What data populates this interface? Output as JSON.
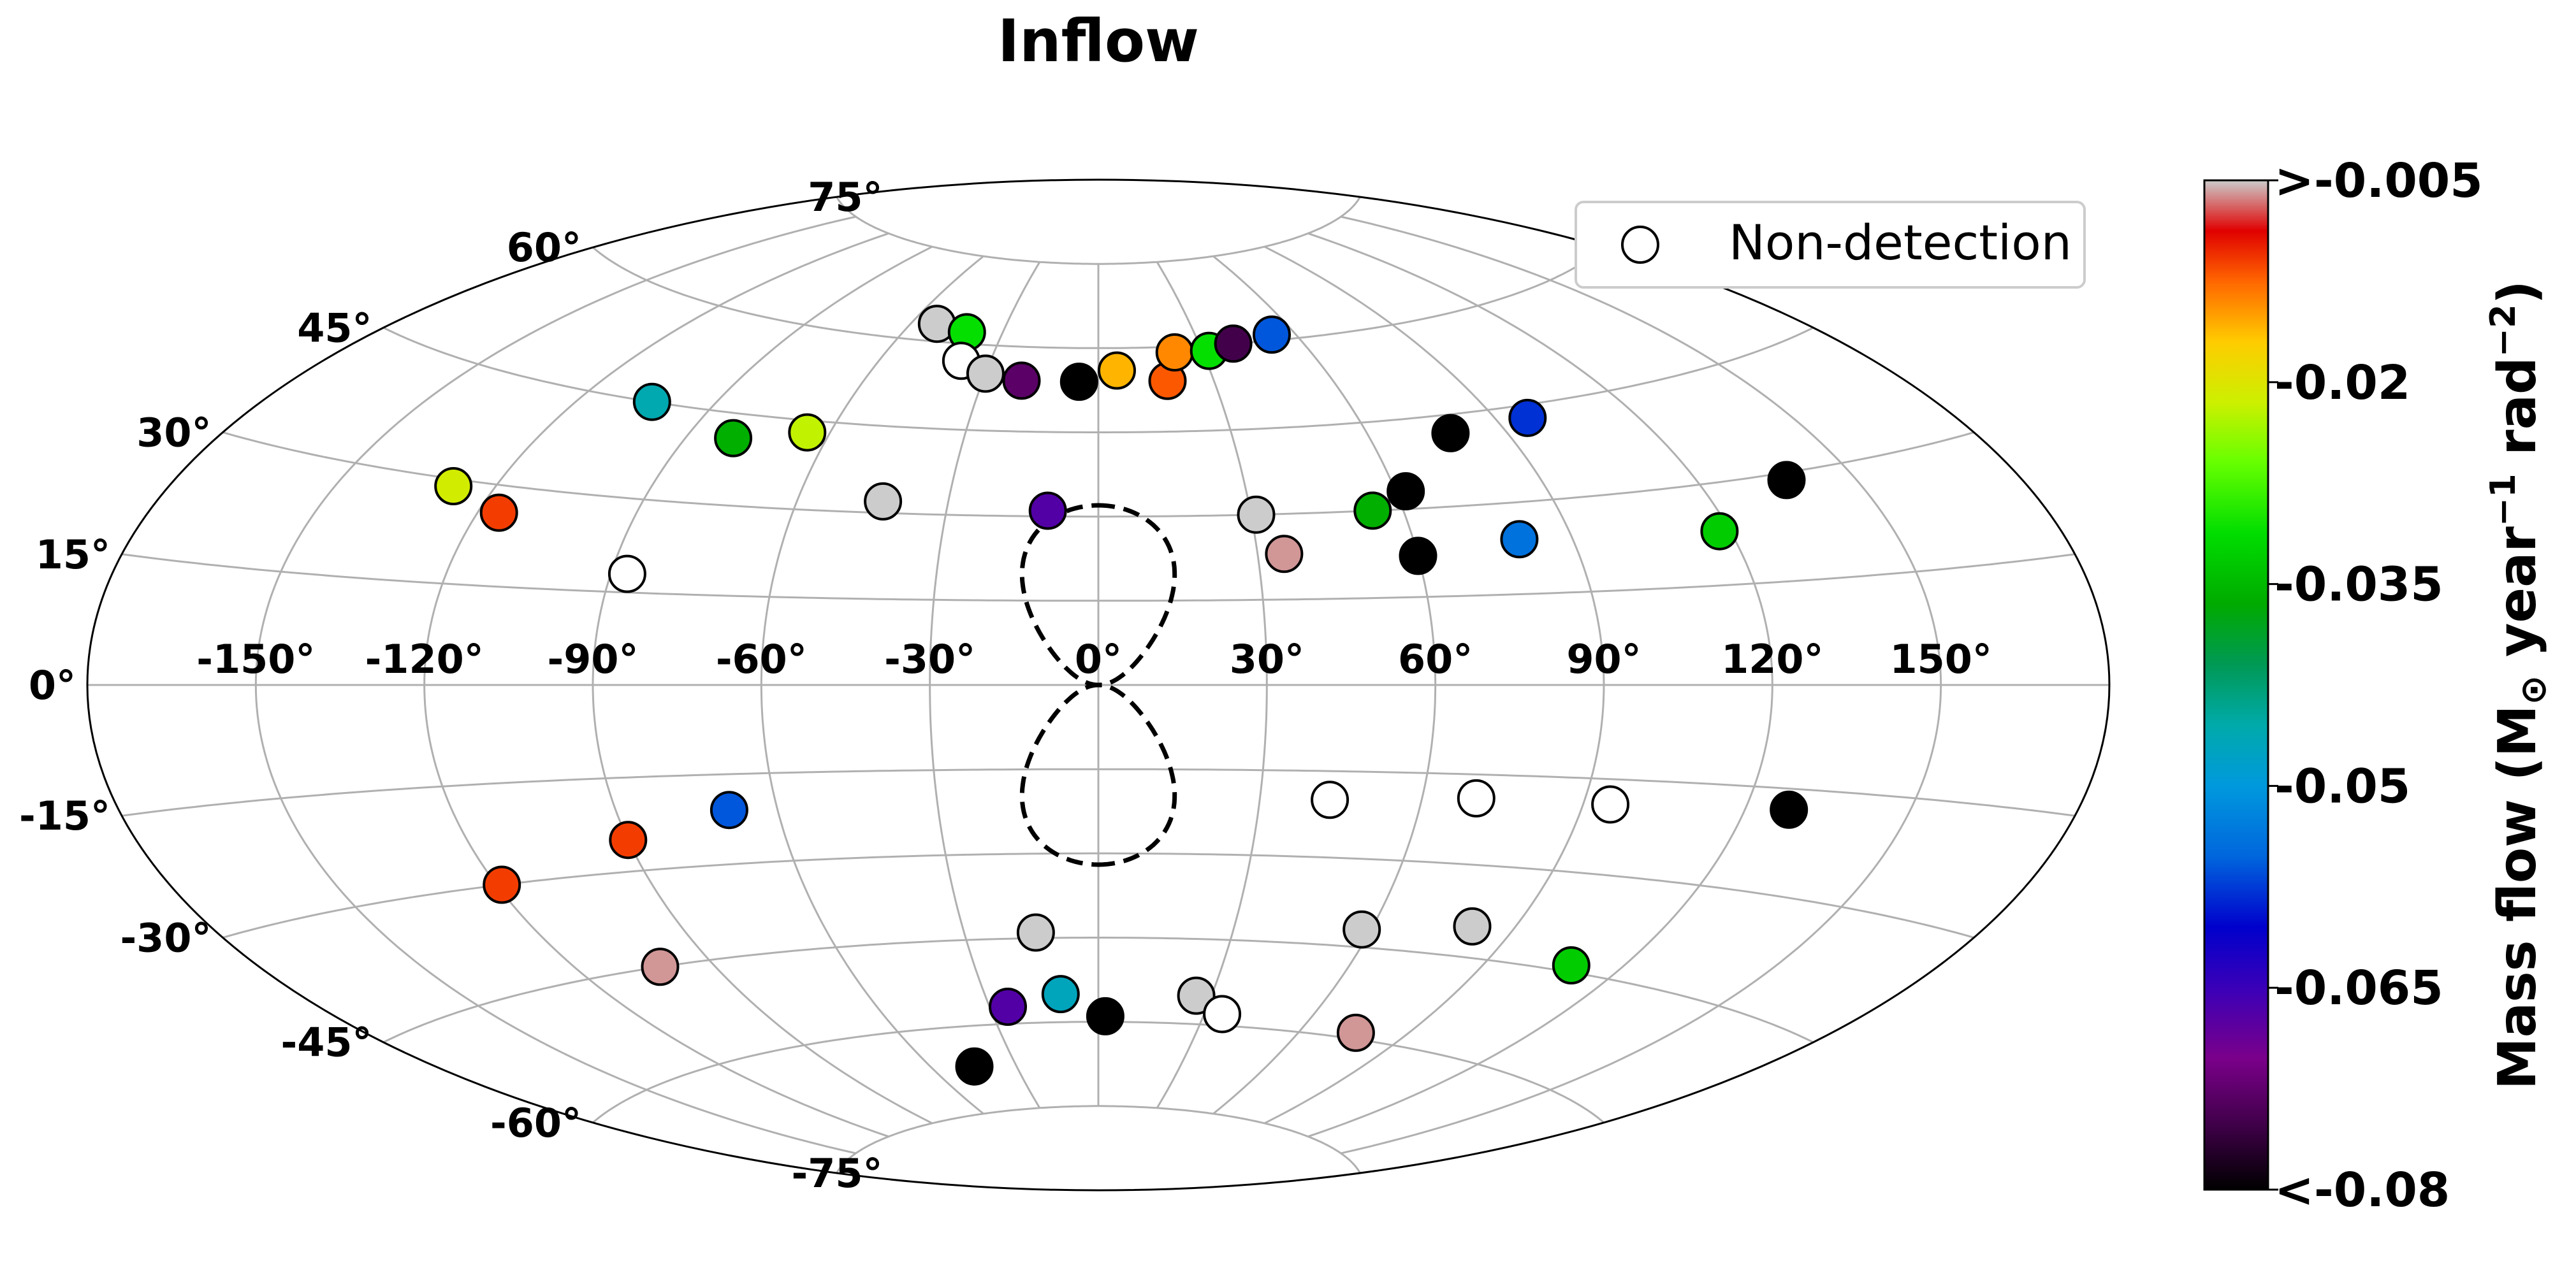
{
  "chart_data": {
    "type": "scatter",
    "projection": "aitoff",
    "title": "Inflow",
    "longitude_ticks": [
      "-150°",
      "-120°",
      "-90°",
      "-60°",
      "-30°",
      "0°",
      "30°",
      "60°",
      "90°",
      "120°",
      "150°"
    ],
    "latitude_ticks": [
      "75°",
      "60°",
      "45°",
      "30°",
      "15°",
      "0°",
      "-15°",
      "-30°",
      "-45°",
      "-60°",
      "-75°"
    ],
    "grid": true,
    "legend": {
      "entries": [
        "Non-detection"
      ],
      "position": "top-right"
    },
    "colorbar": {
      "label_parts": [
        "Mass flow (M",
        "⊙",
        " year",
        "−1",
        " rad",
        "−2",
        ")"
      ],
      "ticks": [
        ">-0.005",
        "-0.02",
        "-0.035",
        "-0.05",
        "-0.065",
        "<-0.08"
      ],
      "range": [
        -0.005,
        -0.08
      ],
      "colormap": "nipy_spectral"
    },
    "excluded_region": "dashed outline around the Galactic center above and below the plane",
    "points": [
      {
        "lon": -128,
        "lat": 29,
        "value": -0.021
      },
      {
        "lon": -116,
        "lat": 26,
        "value": -0.011
      },
      {
        "lon": -104,
        "lat": 45,
        "value": -0.046
      },
      {
        "lon": -87,
        "lat": 18,
        "value": null
      },
      {
        "lon": -80,
        "lat": 41,
        "value": -0.036
      },
      {
        "lon": -65,
        "lat": 43,
        "value": -0.022
      },
      {
        "lon": -52,
        "lat": 63,
        "value": -0.002
      },
      {
        "lon": -41,
        "lat": 62,
        "value": -0.031
      },
      {
        "lon": -38,
        "lat": 57,
        "value": null
      },
      {
        "lon": -43,
        "lat": 32,
        "value": -0.002
      },
      {
        "lon": -30,
        "lat": 55,
        "value": -0.004
      },
      {
        "lon": -20,
        "lat": 54,
        "value": -0.073
      },
      {
        "lon": -10,
        "lat": 31,
        "value": -0.067
      },
      {
        "lon": -5,
        "lat": 54,
        "value": -0.08
      },
      {
        "lon": 5,
        "lat": 56,
        "value": -0.016
      },
      {
        "lon": 18,
        "lat": 54,
        "value": -0.012
      },
      {
        "lon": 22,
        "lat": 59,
        "value": -0.014
      },
      {
        "lon": 32,
        "lat": 59,
        "value": -0.031
      },
      {
        "lon": 40,
        "lat": 60,
        "value": -0.075
      },
      {
        "lon": 53,
        "lat": 61,
        "value": -0.056
      },
      {
        "lon": 31,
        "lat": 30,
        "value": -0.002
      },
      {
        "lon": 35,
        "lat": 23,
        "value": -0.006
      },
      {
        "lon": 54,
        "lat": 30,
        "value": -0.036
      },
      {
        "lon": 62,
        "lat": 33,
        "value": -0.08
      },
      {
        "lon": 60,
        "lat": 22,
        "value": -0.08
      },
      {
        "lon": 78,
        "lat": 42,
        "value": -0.08
      },
      {
        "lon": 97,
        "lat": 43,
        "value": -0.058
      },
      {
        "lon": 80,
        "lat": 24,
        "value": -0.054
      },
      {
        "lon": 118,
        "lat": 23,
        "value": -0.033
      },
      {
        "lon": 137,
        "lat": 29,
        "value": -0.08
      },
      {
        "lon": -119,
        "lat": -30,
        "value": -0.011
      },
      {
        "lon": -102,
        "lat": -45,
        "value": -0.006
      },
      {
        "lon": -90,
        "lat": -25,
        "value": -0.011
      },
      {
        "lon": -69,
        "lat": -21,
        "value": -0.056
      },
      {
        "lon": -45,
        "lat": -67,
        "value": -0.08
      },
      {
        "lon": -25,
        "lat": -57,
        "value": -0.067
      },
      {
        "lon": -14,
        "lat": -44,
        "value": -0.002
      },
      {
        "lon": -10,
        "lat": -55,
        "value": -0.047
      },
      {
        "lon": 2,
        "lat": -59,
        "value": -0.08
      },
      {
        "lon": 26,
        "lat": -55,
        "value": -0.002
      },
      {
        "lon": 35,
        "lat": -58,
        "value": null
      },
      {
        "lon": 43,
        "lat": -20,
        "value": null
      },
      {
        "lon": 58,
        "lat": -42,
        "value": -0.002
      },
      {
        "lon": 70,
        "lat": -19,
        "value": null
      },
      {
        "lon": 81,
        "lat": -40,
        "value": -0.002
      },
      {
        "lon": 76,
        "lat": -59,
        "value": -0.006
      },
      {
        "lon": 95,
        "lat": -19,
        "value": null
      },
      {
        "lon": 109,
        "lat": -44,
        "value": -0.033
      },
      {
        "lon": 128,
        "lat": -18,
        "value": -0.08
      }
    ]
  }
}
